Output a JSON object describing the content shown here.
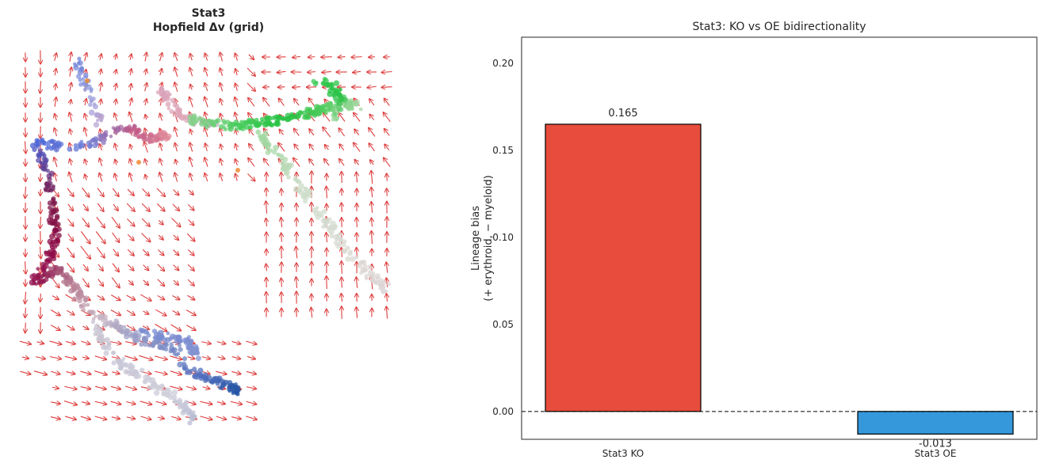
{
  "chart_data": [
    {
      "type": "scatter",
      "title": "Stat3",
      "subtitle": "Hopfield Δv (grid)",
      "axes_visible": false,
      "colors": {
        "arrow": "#dd3c3c",
        "erythroid_path": "#8b0a46",
        "myeloid_path": "#22c040",
        "progenitor_path": "#6b7fcf",
        "pale": "#cfd2dd"
      }
    },
    {
      "type": "bar",
      "title": "Stat3: KO vs OE bidirectionality",
      "xlabel": "",
      "ylabel": "Lineage bias\n(+ erythroid, − myeloid)",
      "categories": [
        "Stat3 KO",
        "Stat3 OE"
      ],
      "values": [
        0.165,
        -0.013
      ],
      "value_labels": [
        "0.165",
        "-0.013"
      ],
      "colors": [
        "#e74c3c",
        "#3498db"
      ],
      "ylim": [
        -0.016,
        0.215
      ],
      "yticks": [
        0.0,
        0.05,
        0.1,
        0.15,
        0.2
      ],
      "ytick_labels": [
        "0.00",
        "0.05",
        "0.10",
        "0.15",
        "0.20"
      ],
      "zero_line": "dashed",
      "grid": false
    }
  ]
}
